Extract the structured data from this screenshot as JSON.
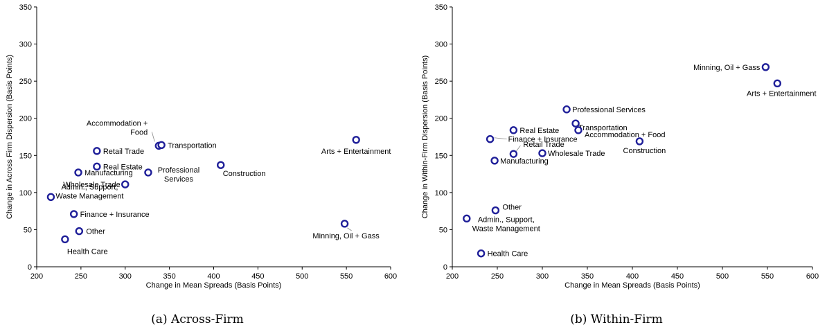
{
  "colors": {
    "marker": "#1f1f99",
    "axis": "#000000",
    "leader": "#888888"
  },
  "chart_data": [
    {
      "type": "scatter",
      "caption": "(a) Across-Firm",
      "xlabel": "Change in Mean Spreads (Basis Points)",
      "ylabel": "Change in Across Firm Dispersion (Basis Points)",
      "xlim": [
        200,
        600
      ],
      "ylim": [
        0,
        350
      ],
      "xticks": [
        "200",
        "250",
        "300",
        "350",
        "400",
        "450",
        "500",
        "550",
        "600"
      ],
      "yticks": [
        "0",
        "50",
        "100",
        "150",
        "200",
        "250",
        "300",
        "350"
      ],
      "grid": false,
      "points": [
        {
          "label": "Accommodation +\nFood",
          "x": 338,
          "y": 163
        },
        {
          "label": "Transportation",
          "x": 341,
          "y": 164
        },
        {
          "label": "Retail Trade",
          "x": 268,
          "y": 156
        },
        {
          "label": "Real Estate",
          "x": 268,
          "y": 135
        },
        {
          "label": "Manufacturing",
          "x": 247,
          "y": 127
        },
        {
          "label": "Professional\nServices",
          "x": 326,
          "y": 127
        },
        {
          "label": "Construction",
          "x": 408,
          "y": 137
        },
        {
          "label": "Arts + Entertainment",
          "x": 561,
          "y": 171
        },
        {
          "label": "Wholesale Trade",
          "x": 300,
          "y": 111
        },
        {
          "label": "Admin., Support,\nWaste Management",
          "x": 216,
          "y": 94
        },
        {
          "label": "Finance + Insurance",
          "x": 242,
          "y": 71
        },
        {
          "label": "Other",
          "x": 248,
          "y": 48
        },
        {
          "label": "Health Care",
          "x": 232,
          "y": 37
        },
        {
          "label": "Minning, Oil + Gass",
          "x": 548,
          "y": 58
        }
      ]
    },
    {
      "type": "scatter",
      "caption": "(b) Within-Firm",
      "xlabel": "Change in Mean Spreads (Basis Points)",
      "ylabel": "Change in Within-Firm Dispersion (Basis Points)",
      "xlim": [
        200,
        600
      ],
      "ylim": [
        0,
        350
      ],
      "xticks": [
        "200",
        "250",
        "300",
        "350",
        "400",
        "450",
        "500",
        "550",
        "600"
      ],
      "yticks": [
        "0",
        "50",
        "100",
        "150",
        "200",
        "250",
        "300",
        "350"
      ],
      "grid": false,
      "points": [
        {
          "label": "Minning, Oil + Gass",
          "x": 548,
          "y": 269
        },
        {
          "label": "Arts + Entertainment",
          "x": 561,
          "y": 247
        },
        {
          "label": "Professional Services",
          "x": 327,
          "y": 212
        },
        {
          "label": "Finance + Insurance",
          "x": 242,
          "y": 172
        },
        {
          "label": "Real Estate",
          "x": 268,
          "y": 184
        },
        {
          "label": "Transportation",
          "x": 337,
          "y": 193
        },
        {
          "label": "Accommodation + Food",
          "x": 340,
          "y": 184
        },
        {
          "label": "Construction",
          "x": 408,
          "y": 169
        },
        {
          "label": "Retail Trade",
          "x": 268,
          "y": 152
        },
        {
          "label": "Wholesale Trade",
          "x": 300,
          "y": 153
        },
        {
          "label": "Manufacturing",
          "x": 247,
          "y": 143
        },
        {
          "label": "Other",
          "x": 248,
          "y": 76
        },
        {
          "label": "Admin., Support,\nWaste Management",
          "x": 216,
          "y": 65
        },
        {
          "label": "Health Care",
          "x": 232,
          "y": 18
        }
      ]
    }
  ]
}
